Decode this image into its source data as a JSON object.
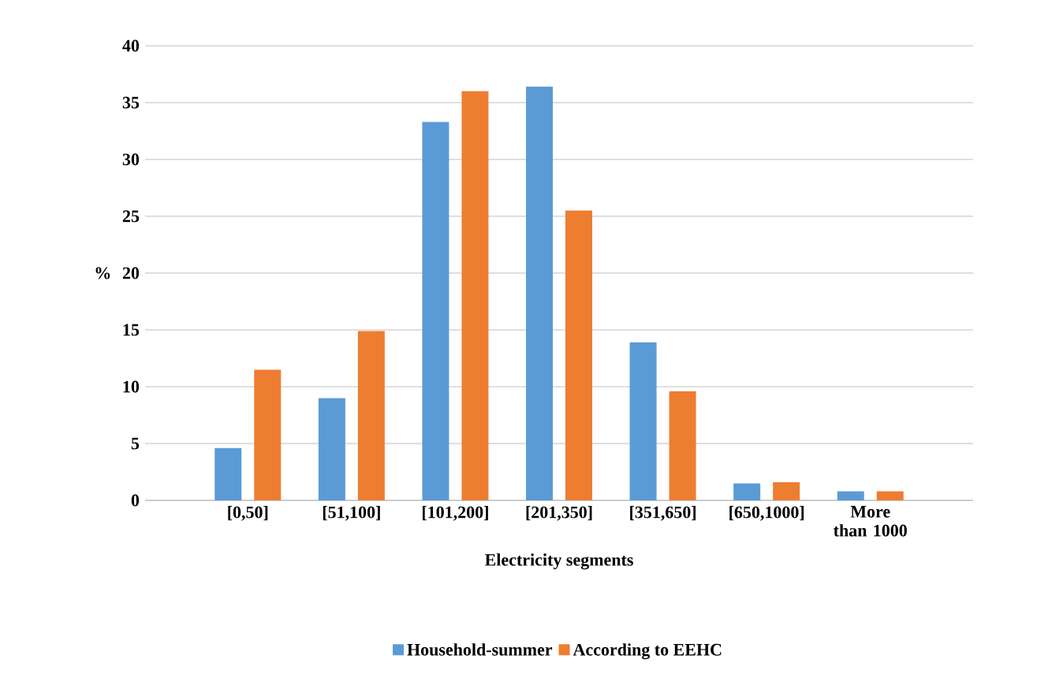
{
  "chart_data": {
    "type": "bar",
    "xlabel": "Electricity segments",
    "ylabel": "%",
    "categories": [
      "[0,50]",
      "[51,100]",
      "[101,200]",
      "[201,350]",
      "[351,650]",
      "[650,1000]",
      "More than 1000"
    ],
    "series": [
      {
        "name": "Household-summer",
        "color": "#5b9bd5",
        "values": [
          4.6,
          9.0,
          33.3,
          36.4,
          13.9,
          1.5,
          0.8
        ]
      },
      {
        "name": "According to EEHC",
        "color": "#ed7d31",
        "values": [
          11.5,
          14.9,
          36.0,
          25.5,
          9.6,
          1.6,
          0.8
        ]
      }
    ],
    "ylim": [
      0,
      40
    ],
    "yticks": [
      0,
      5,
      10,
      15,
      20,
      25,
      30,
      35,
      40
    ],
    "grid": "y",
    "legend": "bottom"
  }
}
